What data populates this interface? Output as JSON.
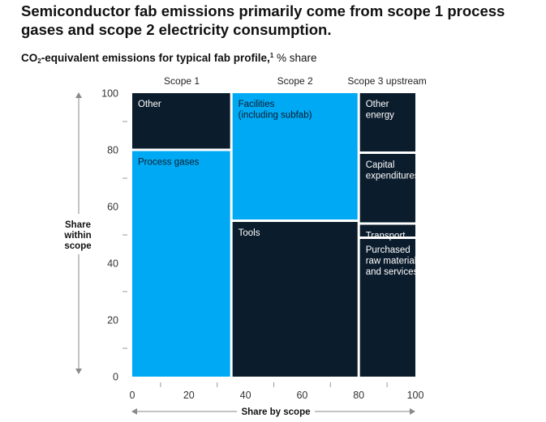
{
  "title": "Semiconductor fab emissions primarily come from scope 1 process gases and scope 2 electricity consumption.",
  "subtitle": {
    "prefix": "CO",
    "sub": "2",
    "rest": "-equivalent emissions for typical fab profile,",
    "footnote": "1",
    "unit": " % share"
  },
  "colors": {
    "dark": "#0b1c2c",
    "light": "#00a9f4",
    "text_on_dark": "#ffffff",
    "text_on_light": "#0b1c2c",
    "axis": "#8a8a8a",
    "label": "#333333"
  },
  "chart_data": {
    "type": "marimekko",
    "xlabel": "Share by scope",
    "ylabel": [
      "Share",
      "within",
      "scope"
    ],
    "xlim": [
      0,
      100
    ],
    "ylim": [
      0,
      100
    ],
    "x_ticks": [
      "0",
      "20",
      "40",
      "60",
      "80",
      "100"
    ],
    "y_ticks": [
      "0",
      "20",
      "40",
      "60",
      "80",
      "100"
    ],
    "columns": [
      {
        "name": "Scope 1",
        "width": 35,
        "segments": [
          {
            "label": [
              "Process gases"
            ],
            "value": 80,
            "color": "light"
          },
          {
            "label": [
              "Other"
            ],
            "value": 20,
            "color": "dark"
          }
        ]
      },
      {
        "name": "Scope 2",
        "width": 45,
        "segments": [
          {
            "label": [
              "Tools"
            ],
            "value": 55,
            "color": "dark"
          },
          {
            "label": [
              "Facilities",
              "(including subfab)"
            ],
            "value": 45,
            "color": "light"
          }
        ]
      },
      {
        "name": "Scope 3 upstream",
        "width": 20,
        "segments": [
          {
            "label": [
              "Purchased",
              "raw material",
              "and services"
            ],
            "value": 49,
            "color": "dark"
          },
          {
            "label": [
              "Transport"
            ],
            "value": 5,
            "color": "dark"
          },
          {
            "label": [
              "Capital",
              "expenditures"
            ],
            "value": 25,
            "color": "dark"
          },
          {
            "label": [
              "Other",
              "energy"
            ],
            "value": 21,
            "color": "dark"
          }
        ]
      }
    ]
  }
}
